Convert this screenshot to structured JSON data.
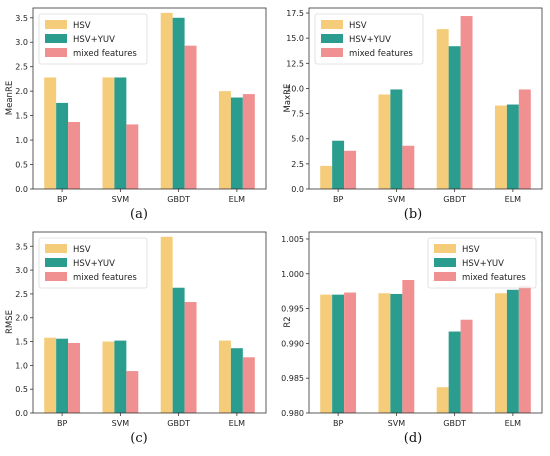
{
  "colors": {
    "hsv": "#f5cc7a",
    "hsv_yuv": "#2a9d8f",
    "mixed": "#f09090"
  },
  "chart_data": [
    {
      "type": "bar",
      "caption": "(a)",
      "ylabel": "MeanRE",
      "categories": [
        "BP",
        "SVM",
        "GBDT",
        "ELM"
      ],
      "ylim": [
        0,
        3.7
      ],
      "yticks": [
        "0.0",
        "0.5",
        "1.0",
        "1.5",
        "2.0",
        "2.5",
        "3.0",
        "3.5"
      ],
      "tick_values": [
        0,
        0.5,
        1.0,
        1.5,
        2.0,
        2.5,
        3.0,
        3.5
      ],
      "legend": [
        "HSV",
        "HSV+YUV",
        "mixed features"
      ],
      "legend_position": "top-left",
      "series": [
        {
          "name": "HSV",
          "values": [
            2.28,
            2.28,
            3.6,
            2.0
          ]
        },
        {
          "name": "HSV+YUV",
          "values": [
            1.76,
            2.28,
            3.5,
            1.87
          ]
        },
        {
          "name": "mixed features",
          "values": [
            1.37,
            1.32,
            2.93,
            1.94
          ]
        }
      ]
    },
    {
      "type": "bar",
      "caption": "(b)",
      "ylabel": "MaxRE",
      "categories": [
        "BP",
        "SVM",
        "GBDT",
        "ELM"
      ],
      "ylim": [
        0,
        18
      ],
      "yticks": [
        "0.0",
        "2.5",
        "5.0",
        "7.5",
        "10.0",
        "12.5",
        "15.0",
        "17.5"
      ],
      "tick_values": [
        0,
        2.5,
        5.0,
        7.5,
        10.0,
        12.5,
        15.0,
        17.5
      ],
      "legend": [
        "HSV",
        "HSV+YUV",
        "mixed features"
      ],
      "legend_position": "top-left",
      "series": [
        {
          "name": "HSV",
          "values": [
            2.3,
            9.4,
            15.9,
            8.3
          ]
        },
        {
          "name": "HSV+YUV",
          "values": [
            4.8,
            9.9,
            14.2,
            8.4
          ]
        },
        {
          "name": "mixed features",
          "values": [
            3.8,
            4.3,
            17.2,
            9.9
          ]
        }
      ]
    },
    {
      "type": "bar",
      "caption": "(c)",
      "ylabel": "RMSE",
      "categories": [
        "BP",
        "SVM",
        "GBDT",
        "ELM"
      ],
      "ylim": [
        0,
        3.8
      ],
      "yticks": [
        "0.0",
        "0.5",
        "1.0",
        "1.5",
        "2.0",
        "2.5",
        "3.0",
        "3.5"
      ],
      "tick_values": [
        0,
        0.5,
        1.0,
        1.5,
        2.0,
        2.5,
        3.0,
        3.5
      ],
      "legend": [
        "HSV",
        "HSV+YUV",
        "mixed features"
      ],
      "legend_position": "top-left",
      "series": [
        {
          "name": "HSV",
          "values": [
            1.58,
            1.5,
            3.7,
            1.52
          ]
        },
        {
          "name": "HSV+YUV",
          "values": [
            1.56,
            1.52,
            2.63,
            1.36
          ]
        },
        {
          "name": "mixed features",
          "values": [
            1.47,
            0.88,
            2.33,
            1.17
          ]
        }
      ]
    },
    {
      "type": "bar",
      "caption": "(d)",
      "ylabel": "R2",
      "categories": [
        "BP",
        "SVM",
        "GBDT",
        "ELM"
      ],
      "ylim": [
        0.98,
        1.006
      ],
      "yticks": [
        "0.980",
        "0.985",
        "0.990",
        "0.995",
        "1.000",
        "1.005"
      ],
      "tick_values": [
        0.98,
        0.985,
        0.99,
        0.995,
        1.0,
        1.005
      ],
      "legend": [
        "HSV",
        "HSV+YUV",
        "mixed features"
      ],
      "legend_position": "top-right",
      "series": [
        {
          "name": "HSV",
          "values": [
            0.997,
            0.9972,
            0.9837,
            0.9972
          ]
        },
        {
          "name": "HSV+YUV",
          "values": [
            0.997,
            0.9971,
            0.9917,
            0.9977
          ]
        },
        {
          "name": "mixed features",
          "values": [
            0.9973,
            0.9991,
            0.9934,
            0.9983
          ]
        }
      ]
    }
  ]
}
